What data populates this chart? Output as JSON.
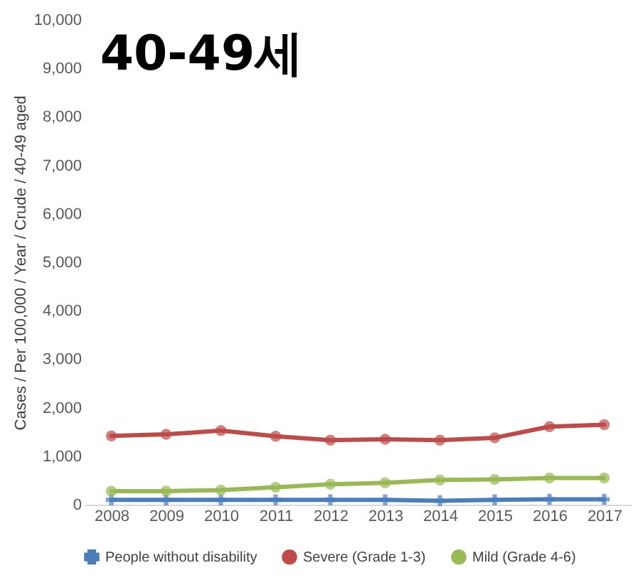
{
  "chart_data": {
    "type": "line",
    "title": "40-49세",
    "ylabel": "Cases / Per 100,000 / Year / Crude / 40-49 aged",
    "categories": [
      "2008",
      "2009",
      "2010",
      "2011",
      "2012",
      "2013",
      "2014",
      "2015",
      "2016",
      "2017"
    ],
    "ylim": [
      0,
      10000
    ],
    "yticks": [
      {
        "value": 0,
        "label": "0"
      },
      {
        "value": 1000,
        "label": "1,000"
      },
      {
        "value": 2000,
        "label": "2,000"
      },
      {
        "value": 3000,
        "label": "3,000"
      },
      {
        "value": 4000,
        "label": "4,000"
      },
      {
        "value": 5000,
        "label": "5,000"
      },
      {
        "value": 6000,
        "label": "6,000"
      },
      {
        "value": 7000,
        "label": "7,000"
      },
      {
        "value": 8000,
        "label": "8,000"
      },
      {
        "value": 9000,
        "label": "9,000"
      },
      {
        "value": 10000,
        "label": "10,000"
      }
    ],
    "grid": false,
    "legend": "bottom",
    "line_style": "solid",
    "series": [
      {
        "name": "People without disability",
        "color": "#4a7ebb",
        "marker": "cross",
        "values": [
          100,
          100,
          100,
          100,
          100,
          100,
          80,
          100,
          110,
          110
        ]
      },
      {
        "name": "Severe (Grade 1-3)",
        "color": "#be4b48",
        "marker": "circle",
        "values": [
          1420,
          1450,
          1530,
          1410,
          1330,
          1350,
          1330,
          1380,
          1610,
          1650
        ]
      },
      {
        "name": "Mild (Grade 4-6)",
        "color": "#98b954",
        "marker": "circle",
        "values": [
          280,
          280,
          300,
          360,
          420,
          450,
          510,
          520,
          550,
          550
        ]
      }
    ]
  }
}
